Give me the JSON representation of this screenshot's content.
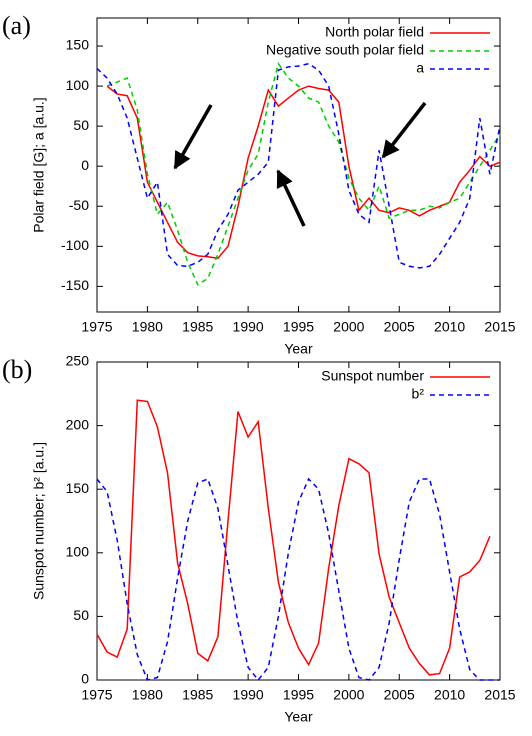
{
  "chart_data": [
    {
      "type": "line",
      "panel_label": "(a)",
      "x_label": "Year",
      "y_label": "Polar field [G]; a [a.u.]",
      "x": [
        1975,
        1976,
        1977,
        1978,
        1979,
        1980,
        1981,
        1982,
        1983,
        1984,
        1985,
        1986,
        1987,
        1988,
        1989,
        1990,
        1991,
        1992,
        1993,
        1994,
        1995,
        1996,
        1997,
        1998,
        1999,
        2000,
        2001,
        2002,
        2003,
        2004,
        2005,
        2006,
        2007,
        2008,
        2009,
        2010,
        2011,
        2012,
        2013,
        2014,
        2015
      ],
      "series": [
        {
          "name": "North polar field",
          "color": "#ff0000",
          "line_style": "solid",
          "values": [
            null,
            100,
            90,
            88,
            60,
            -20,
            -45,
            -70,
            -95,
            -108,
            -112,
            -113,
            -115,
            -100,
            -50,
            10,
            50,
            95,
            75,
            85,
            95,
            100,
            97,
            95,
            80,
            0,
            -55,
            -40,
            -55,
            -58,
            -52,
            -55,
            -62,
            -55,
            -50,
            -45,
            -20,
            -5,
            12,
            0,
            5
          ]
        },
        {
          "name": "Negative south polar field",
          "color": "#00cc00",
          "line_style": "dashed",
          "values": [
            null,
            100,
            105,
            110,
            70,
            -10,
            -60,
            -45,
            -80,
            -120,
            -148,
            -140,
            -110,
            -75,
            -40,
            -5,
            15,
            80,
            128,
            110,
            100,
            85,
            80,
            50,
            30,
            -15,
            -40,
            -55,
            -25,
            -65,
            -60,
            -55,
            -55,
            -50,
            -52,
            -45,
            -40,
            -20,
            0,
            20,
            40
          ]
        },
        {
          "name": "a",
          "color": "#0000ff",
          "line_style": "dashed",
          "values": [
            122,
            110,
            90,
            60,
            10,
            -40,
            -20,
            -110,
            -124,
            -125,
            -120,
            -110,
            -80,
            -60,
            -30,
            -20,
            -10,
            5,
            120,
            124,
            125,
            128,
            120,
            100,
            40,
            -30,
            -60,
            -70,
            20,
            -50,
            -120,
            -125,
            -127,
            -125,
            -110,
            -90,
            -70,
            -40,
            60,
            -10,
            50
          ]
        }
      ],
      "xlim": [
        1975,
        2015
      ],
      "xticks": [
        1975,
        1980,
        1985,
        1990,
        1995,
        2000,
        2005,
        2010,
        2015
      ],
      "ylim": [
        -182,
        185
      ],
      "yticks": [
        -150,
        -100,
        -50,
        0,
        50,
        100,
        150
      ],
      "legend": "upper right"
    },
    {
      "type": "line",
      "panel_label": "(b)",
      "x_label": "Year",
      "y_label": "Sunspot number; b² [a.u.]",
      "x": [
        1975,
        1976,
        1977,
        1978,
        1979,
        1980,
        1981,
        1982,
        1983,
        1984,
        1985,
        1986,
        1987,
        1988,
        1989,
        1990,
        1991,
        1992,
        1993,
        1994,
        1995,
        1996,
        1997,
        1998,
        1999,
        2000,
        2001,
        2002,
        2003,
        2004,
        2005,
        2006,
        2007,
        2008,
        2009,
        2010,
        2011,
        2012,
        2013,
        2014,
        2015
      ],
      "series": [
        {
          "name": "Sunspot number",
          "color": "#ff0000",
          "line_style": "solid",
          "values": [
            36,
            22,
            18,
            40,
            220,
            219,
            199,
            163,
            92,
            60,
            21,
            15,
            34,
            125,
            211,
            191,
            203,
            135,
            77,
            45,
            25,
            12,
            29,
            88,
            137,
            174,
            170,
            163,
            99,
            65,
            45,
            25,
            13,
            4,
            5,
            25,
            81,
            85,
            94,
            113,
            null
          ]
        },
        {
          "name": "b²",
          "color": "#0000ff",
          "line_style": "dashed",
          "values": [
            158,
            148,
            110,
            60,
            20,
            0,
            2,
            30,
            80,
            125,
            155,
            158,
            135,
            90,
            45,
            10,
            0,
            10,
            50,
            100,
            140,
            158,
            150,
            115,
            70,
            25,
            2,
            0,
            10,
            45,
            95,
            140,
            158,
            158,
            130,
            85,
            40,
            8,
            0,
            0,
            0
          ]
        }
      ],
      "xlim": [
        1975,
        2015
      ],
      "xticks": [
        1975,
        1980,
        1985,
        1990,
        1995,
        2000,
        2005,
        2010,
        2015
      ],
      "ylim": [
        0,
        250
      ],
      "yticks": [
        0,
        50,
        100,
        150,
        200,
        250
      ],
      "legend": "upper right"
    }
  ]
}
